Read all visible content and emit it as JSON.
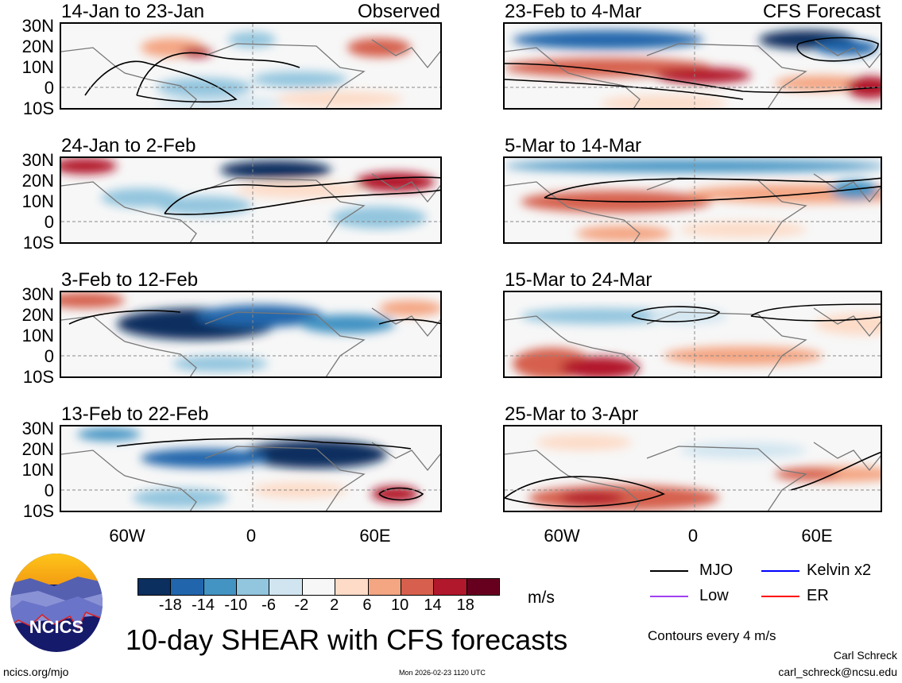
{
  "title": "10-day SHEAR with CFS forecasts",
  "panels": [
    {
      "period": "14-Jan to 23-Jan",
      "tag": "Observed"
    },
    {
      "period": "24-Jan to 2-Feb",
      "tag": ""
    },
    {
      "period": "3-Feb to 12-Feb",
      "tag": ""
    },
    {
      "period": "13-Feb to 22-Feb",
      "tag": ""
    },
    {
      "period": "23-Feb to 4-Mar",
      "tag": "CFS Forecast"
    },
    {
      "period": "5-Mar to 14-Mar",
      "tag": ""
    },
    {
      "period": "15-Mar to 24-Mar",
      "tag": ""
    },
    {
      "period": "25-Mar to 3-Apr",
      "tag": ""
    }
  ],
  "lat_labels": [
    "30N",
    "20N",
    "10N",
    "0",
    "10S"
  ],
  "lon_labels": [
    "60W",
    "0",
    "60E"
  ],
  "colorbar": {
    "labels": [
      "-18",
      "-14",
      "-10",
      "-6",
      "-2",
      "2",
      "6",
      "10",
      "14",
      "18"
    ],
    "colors": [
      "#0b2f5e",
      "#2166ac",
      "#4393c3",
      "#92c5de",
      "#d1e5f0",
      "#f7f7f7",
      "#fddbc7",
      "#f4a582",
      "#d6604d",
      "#b2182b",
      "#67001f"
    ],
    "unit": "m/s"
  },
  "legend": [
    {
      "label": "MJO",
      "color": "#000000"
    },
    {
      "label": "Kelvin x2",
      "color": "#0000ff"
    },
    {
      "label": "Low",
      "color": "#a040f0"
    },
    {
      "label": "ER",
      "color": "#ff0000"
    }
  ],
  "contour_note": "Contours every 4 m/s",
  "logo_text": "NCICS",
  "author": "Carl Schreck",
  "email": "carl_schreck@ncsu.edu",
  "site": "ncics.org/mjo",
  "timestamp": "Mon 2026-02-23 1120 UTC"
}
